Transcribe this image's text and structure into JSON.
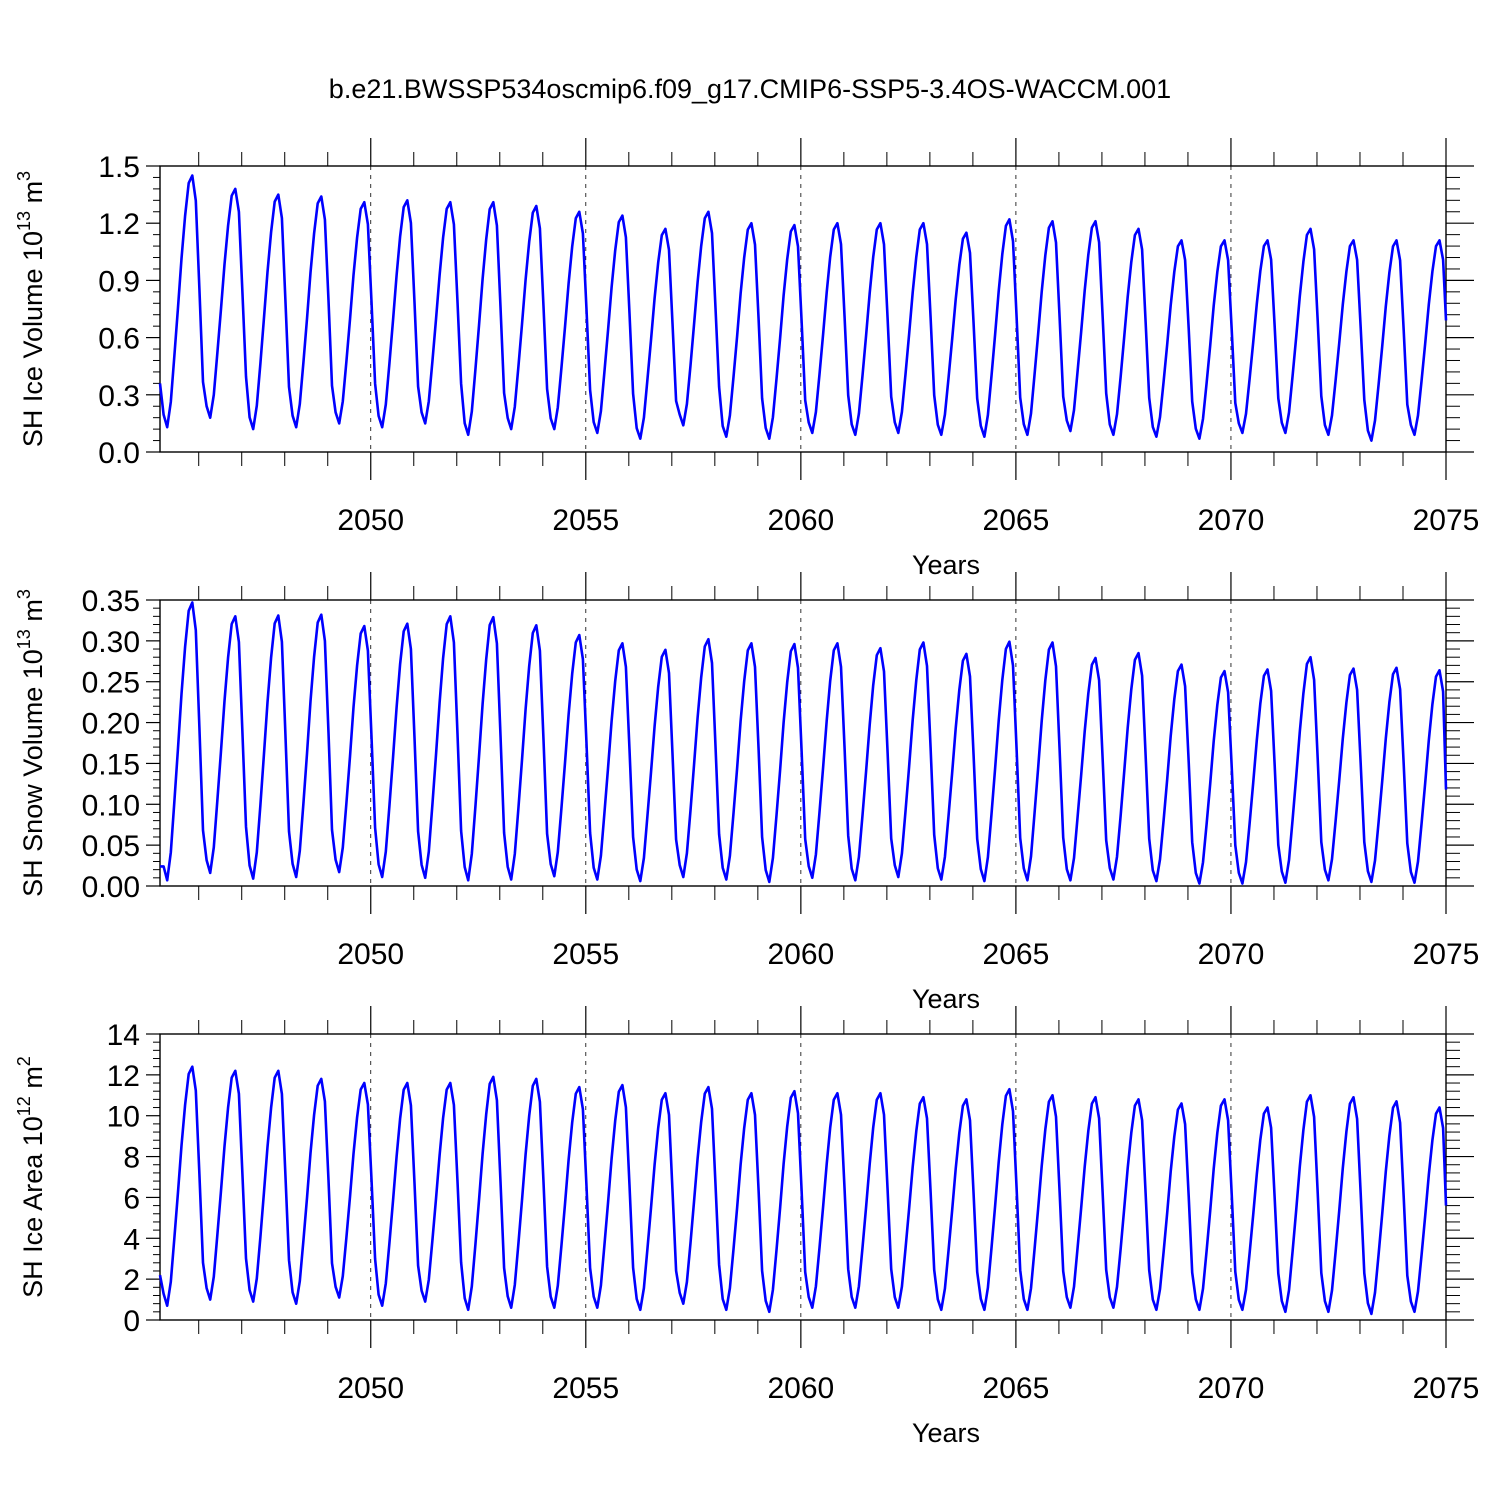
{
  "title": "b.e21.BWSSP534oscmip6.f09_g17.CMIP6-SSP5-3.4OS-WACCM.001",
  "colors": {
    "series": "#0000ff",
    "axes": "#000000"
  },
  "chart_data": [
    {
      "type": "line",
      "ylabel": "SH Ice Volume 10",
      "ylabel_exp": "13",
      "ylabel_unit": " m",
      "ylabel_unit_exp": "3",
      "xlabel": "Years",
      "xlim": [
        2045.1,
        2075.0
      ],
      "ylim": [
        0,
        1.5
      ],
      "yticks": [
        0.0,
        0.3,
        0.6,
        0.9,
        1.2,
        1.5
      ],
      "ytick_labels": [
        "0.0",
        "0.3",
        "0.6",
        "0.9",
        "1.2",
        "1.5"
      ],
      "xticks": [
        2050,
        2055,
        2060,
        2065,
        2070,
        2075
      ],
      "xtick_labels": [
        "2050",
        "2055",
        "2060",
        "2065",
        "2070",
        "2075"
      ],
      "vertical_dashed_lines": [
        2050,
        2055,
        2060,
        2065,
        2070
      ],
      "start": 2045.1,
      "series": [
        {
          "name": "",
          "annual_max": [
            1.45,
            1.38,
            1.35,
            1.34,
            1.31,
            1.32,
            1.31,
            1.31,
            1.29,
            1.26,
            1.24,
            1.17,
            1.26,
            1.2,
            1.19,
            1.2,
            1.2,
            1.2,
            1.15,
            1.22,
            1.21,
            1.21,
            1.17,
            1.11,
            1.11,
            1.11,
            1.17,
            1.11,
            1.11,
            1.11
          ],
          "annual_min": [
            0.13,
            0.18,
            0.12,
            0.13,
            0.15,
            0.13,
            0.15,
            0.09,
            0.12,
            0.12,
            0.1,
            0.07,
            0.14,
            0.08,
            0.07,
            0.1,
            0.09,
            0.1,
            0.09,
            0.08,
            0.09,
            0.11,
            0.09,
            0.08,
            0.07,
            0.1,
            0.1,
            0.09,
            0.06,
            0.09
          ],
          "start_value": 0.36,
          "end_value": 0.69
        }
      ]
    },
    {
      "type": "line",
      "ylabel": "SH Snow Volume 10",
      "ylabel_exp": "13",
      "ylabel_unit": " m",
      "ylabel_unit_exp": "3",
      "xlabel": "Years",
      "xlim": [
        2045.1,
        2075.0
      ],
      "ylim": [
        0,
        0.35
      ],
      "yticks": [
        0.0,
        0.05,
        0.1,
        0.15,
        0.2,
        0.25,
        0.3,
        0.35
      ],
      "ytick_labels": [
        "0.00",
        "0.05",
        "0.10",
        "0.15",
        "0.20",
        "0.25",
        "0.30",
        "0.35"
      ],
      "xticks": [
        2050,
        2055,
        2060,
        2065,
        2070,
        2075
      ],
      "xtick_labels": [
        "2050",
        "2055",
        "2060",
        "2065",
        "2070",
        "2075"
      ],
      "vertical_dashed_lines": [
        2050,
        2055,
        2060,
        2065,
        2070
      ],
      "start": 2045.1,
      "series": [
        {
          "name": "",
          "annual_max": [
            0.347,
            0.33,
            0.331,
            0.332,
            0.318,
            0.321,
            0.33,
            0.329,
            0.319,
            0.307,
            0.297,
            0.289,
            0.302,
            0.297,
            0.296,
            0.297,
            0.291,
            0.298,
            0.284,
            0.299,
            0.298,
            0.279,
            0.285,
            0.271,
            0.263,
            0.265,
            0.28,
            0.266,
            0.267,
            0.264
          ],
          "annual_min": [
            0.007,
            0.016,
            0.009,
            0.011,
            0.017,
            0.011,
            0.01,
            0.007,
            0.008,
            0.012,
            0.008,
            0.006,
            0.011,
            0.008,
            0.005,
            0.01,
            0.007,
            0.011,
            0.008,
            0.006,
            0.007,
            0.007,
            0.008,
            0.006,
            0.003,
            0.003,
            0.004,
            0.007,
            0.005,
            0.004
          ],
          "start_value": 0.024,
          "end_value": 0.118
        }
      ]
    },
    {
      "type": "line",
      "ylabel": "SH Ice Area 10",
      "ylabel_exp": "12",
      "ylabel_unit": " m",
      "ylabel_unit_exp": "2",
      "xlabel": "Years",
      "xlim": [
        2045.1,
        2075.0
      ],
      "ylim": [
        0,
        14
      ],
      "yticks": [
        0,
        2,
        4,
        6,
        8,
        10,
        12,
        14
      ],
      "ytick_labels": [
        "0",
        "2",
        "4",
        "6",
        "8",
        "10",
        "12",
        "14"
      ],
      "xticks": [
        2050,
        2055,
        2060,
        2065,
        2070,
        2075
      ],
      "xtick_labels": [
        "2050",
        "2055",
        "2060",
        "2065",
        "2070",
        "2075"
      ],
      "vertical_dashed_lines": [
        2050,
        2055,
        2060,
        2065,
        2070
      ],
      "start": 2045.1,
      "series": [
        {
          "name": "",
          "annual_max": [
            12.4,
            12.2,
            12.2,
            11.8,
            11.6,
            11.6,
            11.6,
            11.9,
            11.8,
            11.4,
            11.5,
            11.1,
            11.4,
            11.1,
            11.2,
            11.1,
            11.1,
            10.9,
            10.8,
            11.3,
            11.0,
            10.9,
            10.8,
            10.6,
            10.8,
            10.4,
            11.0,
            10.9,
            10.7,
            10.4
          ],
          "annual_min": [
            0.7,
            1.0,
            0.9,
            0.8,
            1.1,
            0.7,
            0.9,
            0.5,
            0.6,
            0.6,
            0.6,
            0.5,
            0.8,
            0.5,
            0.4,
            0.6,
            0.6,
            0.6,
            0.5,
            0.5,
            0.5,
            0.6,
            0.6,
            0.5,
            0.5,
            0.5,
            0.4,
            0.4,
            0.3,
            0.4
          ],
          "start_value": 2.2,
          "end_value": 5.6
        }
      ]
    }
  ]
}
